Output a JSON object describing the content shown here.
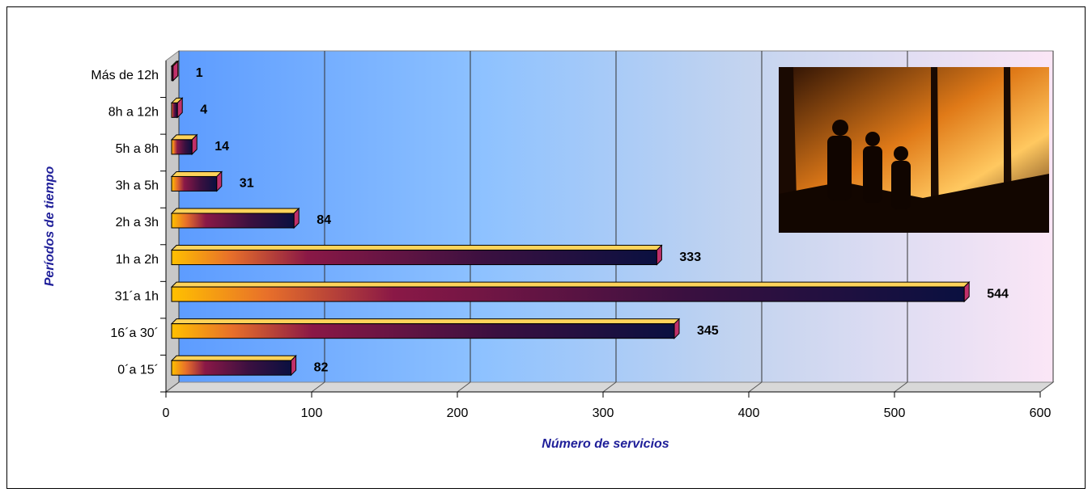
{
  "chart_data": {
    "type": "bar3d",
    "orientation": "horizontal",
    "x_label": "Número de servicios",
    "y_label": "Períodos de tiempo",
    "categories": [
      "0´a 15´",
      "16´a 30´",
      "31´a 1h",
      "1h a 2h",
      "2h a 3h",
      "3h a 5h",
      "5h a 8h",
      "8h a 12h",
      "Más de 12h"
    ],
    "values": [
      82,
      345,
      544,
      333,
      84,
      31,
      14,
      4,
      1
    ],
    "value_label_colors": [
      "#1f1f99",
      "#1f1f99",
      "#e3141c",
      "#1f1f99",
      "#1f1f99",
      "#1f1f99",
      "#1f1f99",
      "#1f1f99",
      "#1f1f99"
    ],
    "xlim": [
      0,
      600
    ],
    "xticks": [
      0,
      100,
      200,
      300,
      400,
      500,
      600
    ],
    "grid": true
  }
}
